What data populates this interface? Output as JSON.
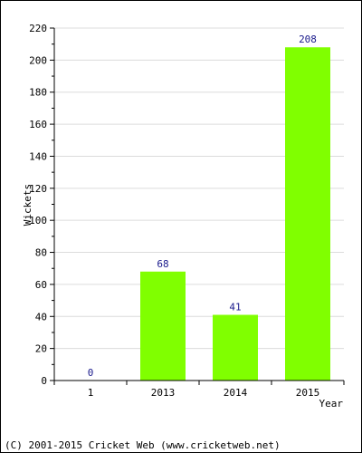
{
  "chart_data": {
    "type": "bar",
    "categories": [
      "1",
      "2013",
      "2014",
      "2015"
    ],
    "values": [
      0,
      68,
      41,
      208
    ],
    "data_labels": [
      "0",
      "68",
      "41",
      "208"
    ],
    "xlabel": "Year",
    "ylabel": "Wickets",
    "ylim": [
      0,
      220
    ],
    "yticks": [
      0,
      20,
      40,
      60,
      80,
      100,
      120,
      140,
      160,
      180,
      200,
      220
    ],
    "yticks_minor_step": 10,
    "grid": true,
    "bar_color": "#80ff00",
    "label_color": "#1a1a8c"
  },
  "footer": "(C) 2001-2015 Cricket Web (www.cricketweb.net)"
}
